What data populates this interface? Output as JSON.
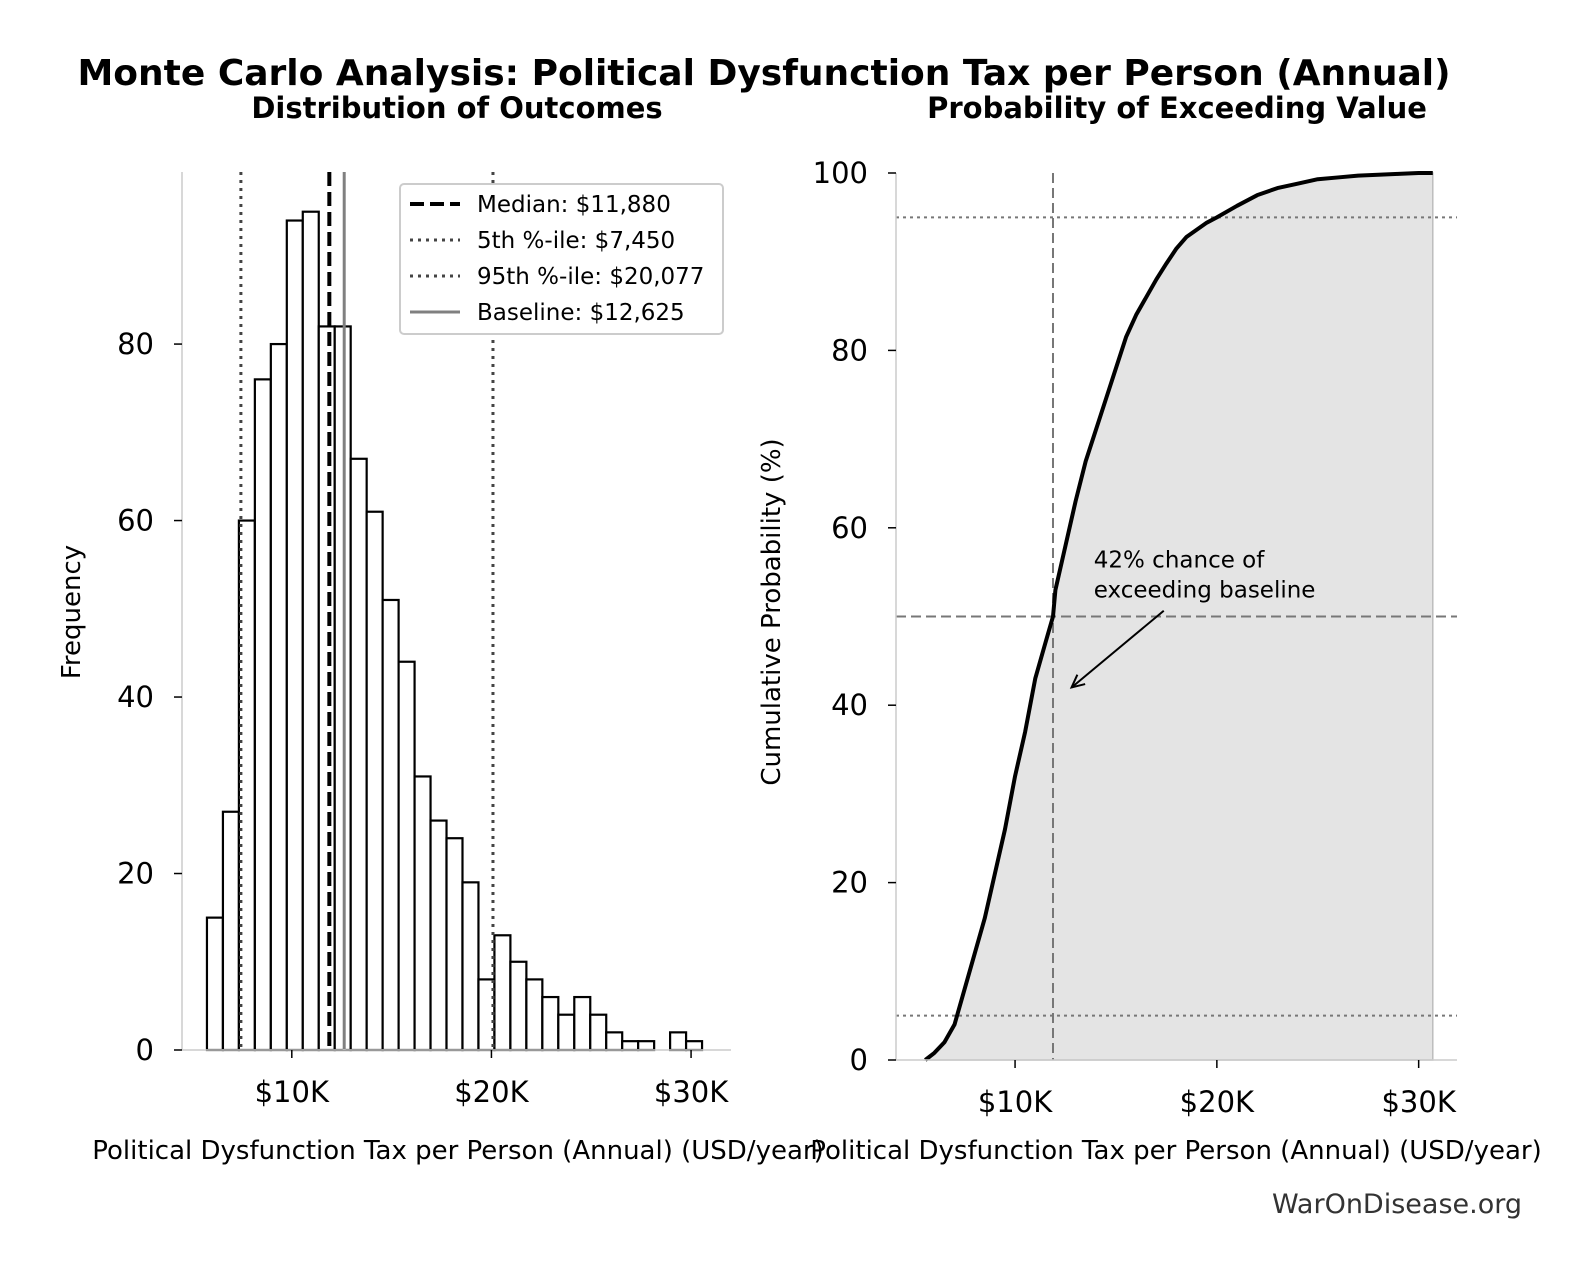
{
  "figure": {
    "title": "Monte Carlo Analysis: Political Dysfunction Tax per Person (Annual)",
    "watermark": "WarOnDisease.org"
  },
  "chart_data": [
    {
      "type": "bar",
      "title": "Distribution of Outcomes",
      "xlabel": "Political Dysfunction Tax per Person (Annual) (USD/year)",
      "ylabel": "Frequency",
      "xlim": [
        4500,
        32000
      ],
      "ylim": [
        0,
        99.5
      ],
      "x_ticks": [
        10000,
        20000,
        30000
      ],
      "x_tick_labels": [
        "$10K",
        "$20K",
        "$30K"
      ],
      "y_ticks": [
        0,
        20,
        40,
        60,
        80
      ],
      "y_tick_labels": [
        "0",
        "20",
        "40",
        "60",
        "80"
      ],
      "grid": false,
      "legend_position": "top-right",
      "bin_width": 800,
      "bin_starts": [
        5750,
        6550,
        7350,
        8150,
        8950,
        9750,
        10550,
        11350,
        12150,
        12950,
        13750,
        14550,
        15350,
        16150,
        16950,
        17750,
        18550,
        19350,
        20150,
        20950,
        21750,
        22550,
        23350,
        24150,
        24950,
        25750,
        26550,
        27350,
        28150,
        28950,
        29750
      ],
      "values": [
        15,
        27,
        60,
        76,
        80,
        94,
        95,
        82,
        82,
        67,
        61,
        51,
        44,
        31,
        26,
        24,
        19,
        8,
        13,
        10,
        8,
        6,
        4,
        6,
        4,
        2,
        1,
        1,
        0,
        2,
        1
      ],
      "reference_lines": [
        {
          "label": "Median: $11,880",
          "x": 11880,
          "style": "dashed",
          "color": "#000000"
        },
        {
          "label": "5th %-ile: $7,450",
          "x": 7450,
          "style": "dotted",
          "color": "#444444"
        },
        {
          "label": "95th %-ile: $20,077",
          "x": 20077,
          "style": "dotted",
          "color": "#444444"
        },
        {
          "label": "Baseline: $12,625",
          "x": 12625,
          "style": "solid",
          "color": "#808080"
        }
      ]
    },
    {
      "type": "area",
      "title": "Probability of Exceeding Value",
      "xlabel": "Political Dysfunction Tax per Person (Annual) (USD/year)",
      "ylabel": "Cumulative Probability (%)",
      "xlim": [
        4100,
        31900
      ],
      "ylim": [
        0,
        100
      ],
      "x_ticks": [
        10000,
        20000,
        30000
      ],
      "x_tick_labels": [
        "$10K",
        "$20K",
        "$30K"
      ],
      "y_ticks": [
        0,
        20,
        40,
        60,
        80,
        100
      ],
      "y_tick_labels": [
        "0",
        "20",
        "40",
        "60",
        "80",
        "100"
      ],
      "grid": false,
      "fill_color": "#e4e4e4",
      "line_color": "#000000",
      "series": [
        {
          "x": [
            5550,
            6000,
            6500,
            7000,
            7500,
            8000,
            8500,
            9000,
            9500,
            10000,
            10500,
            11000,
            11500,
            11880,
            12000,
            12500,
            13000,
            13500,
            14000,
            14500,
            15000,
            15500,
            16000,
            16500,
            17000,
            17500,
            18000,
            18500,
            19000,
            19500,
            20000,
            21000,
            22000,
            23000,
            24000,
            25000,
            26000,
            27000,
            28000,
            29000,
            30000,
            30700
          ],
          "y": [
            0,
            0.8,
            2,
            4,
            8,
            12,
            16,
            21,
            26,
            32,
            37,
            43,
            47,
            50,
            53,
            58,
            63,
            67.5,
            71,
            74.5,
            78,
            81.5,
            84,
            86,
            88,
            89.8,
            91.5,
            92.8,
            93.6,
            94.4,
            95,
            96.3,
            97.5,
            98.3,
            98.8,
            99.3,
            99.5,
            99.7,
            99.8,
            99.9,
            100,
            100
          ]
        }
      ],
      "reference_lines": [
        {
          "orientation": "vertical",
          "x": 11880,
          "style": "dashed"
        },
        {
          "orientation": "horizontal",
          "y": 50,
          "style": "dashed"
        },
        {
          "orientation": "horizontal",
          "y": 5,
          "style": "dotted"
        },
        {
          "orientation": "horizontal",
          "y": 95,
          "style": "dotted"
        }
      ],
      "annotation": {
        "lines": [
          "42% chance of",
          "exceeding baseline"
        ],
        "point_x": 12800,
        "point_y": 42,
        "text_x": 13900,
        "text_y": 55.5
      }
    }
  ]
}
